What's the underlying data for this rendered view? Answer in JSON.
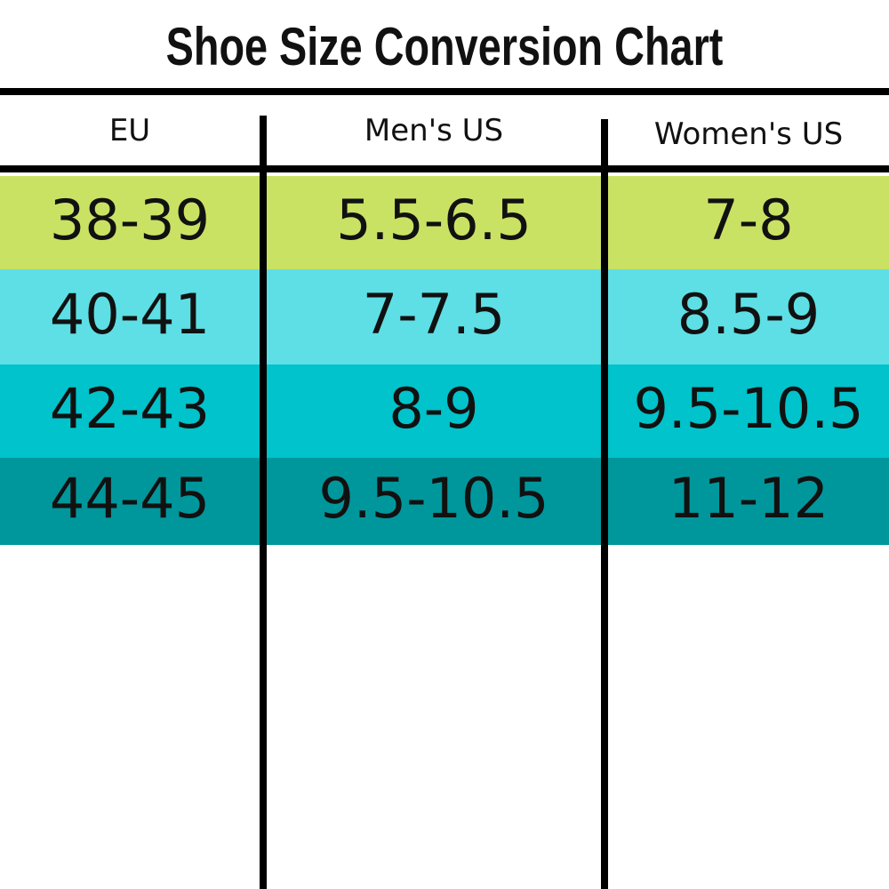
{
  "header": {
    "title": "Shoe Size Conversion Chart"
  },
  "table": {
    "columns": [
      "EU",
      "Men's US",
      "Women's US"
    ],
    "rows": [
      [
        "38-39",
        "5.5-6.5",
        "7-8"
      ],
      [
        "40-41",
        "7-7.5",
        "8.5-9"
      ],
      [
        "42-43",
        "8-9",
        "9.5-10.5"
      ],
      [
        "44-45",
        "9.5-10.5",
        "11-12"
      ]
    ]
  }
}
